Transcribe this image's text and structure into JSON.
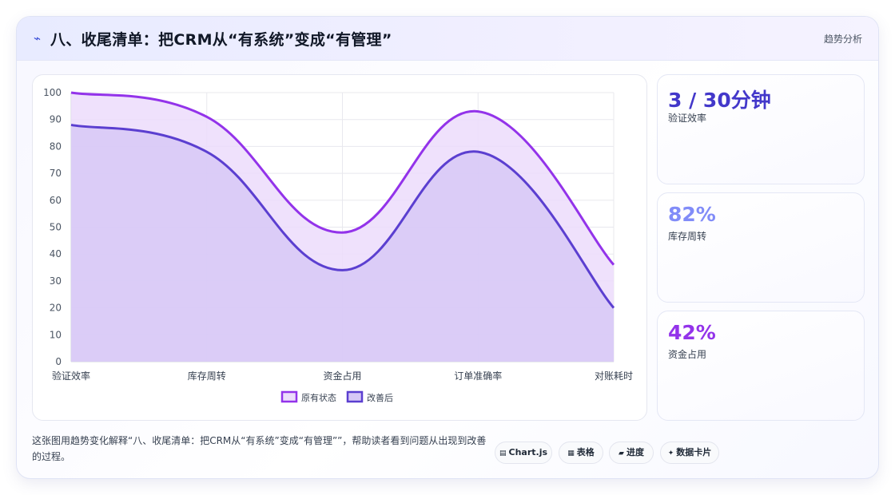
{
  "header": {
    "icon": "lightning-icon",
    "title": "八、收尾清单：把CRM从“有系统”变成“有管理”",
    "tag": "趋势分析"
  },
  "stats": [
    {
      "value": "3 / 30分钟",
      "label": "验证效率",
      "color": "#4338ca"
    },
    {
      "value": "82%",
      "label": "库存周转",
      "color": "#818cf8"
    },
    {
      "value": "42%",
      "label": "资金占用",
      "color": "#9333ea"
    }
  ],
  "footer": {
    "description": "这张图用趋势变化解释“八、收尾清单：把CRM从“有系统”变成“有管理””，帮助读者看到问题从出现到改善的过程。",
    "chips": [
      {
        "icon": "chart-icon",
        "glyph": "▤",
        "label": "Chart.js"
      },
      {
        "icon": "table-icon",
        "glyph": "▦",
        "label": "表格"
      },
      {
        "icon": "progress-icon",
        "glyph": "▰",
        "label": "进度"
      },
      {
        "icon": "sparkle-icon",
        "glyph": "✦",
        "label": "数据卡片"
      }
    ]
  },
  "chart_data": {
    "type": "area",
    "categories": [
      "验证效率",
      "库存周转",
      "资金占用",
      "订单准确率",
      "对账耗时"
    ],
    "series": [
      {
        "name": "原有状态",
        "values": [
          100,
          91,
          48,
          93,
          36
        ],
        "color": "#9333ea",
        "fill": "#ecdcfb"
      },
      {
        "name": "改善后",
        "values": [
          88,
          78,
          34,
          78,
          20
        ],
        "color": "#5b3fd0",
        "fill": "#d7c8f6"
      }
    ],
    "ylim": [
      0,
      100
    ],
    "yticks": [
      0,
      10,
      20,
      30,
      40,
      50,
      60,
      70,
      80,
      90,
      100
    ],
    "grid": true,
    "legend": "bottom"
  }
}
